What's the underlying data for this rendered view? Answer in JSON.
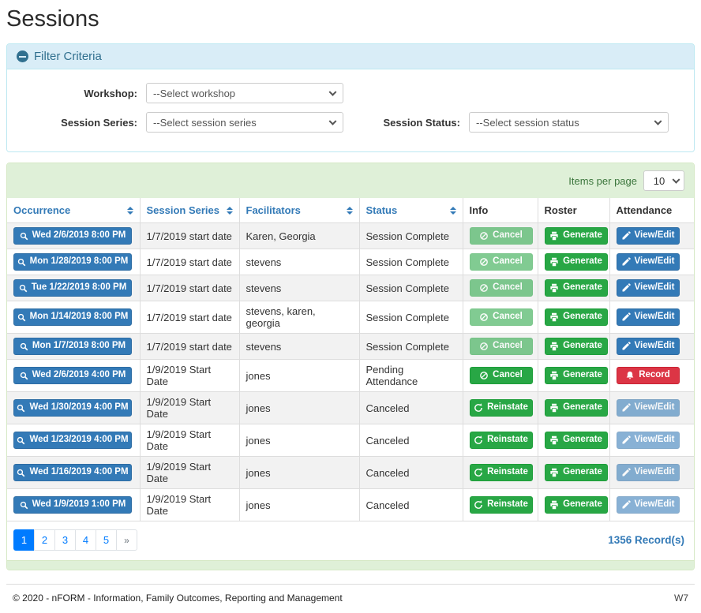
{
  "page": {
    "title": "Sessions"
  },
  "filter": {
    "title": "Filter Criteria",
    "collapse_icon": "minus-circle-icon",
    "workshop": {
      "label": "Workshop:",
      "value": "--Select workshop"
    },
    "session_series": {
      "label": "Session Series:",
      "value": "--Select session series"
    },
    "session_status": {
      "label": "Session Status:",
      "value": "--Select session status"
    }
  },
  "table": {
    "items_per_page_label": "Items per page",
    "items_per_page_value": "10",
    "columns": [
      {
        "label": "Occurrence",
        "sortable": true
      },
      {
        "label": "Session Series",
        "sortable": true
      },
      {
        "label": "Facilitators",
        "sortable": true
      },
      {
        "label": "Status",
        "sortable": true
      },
      {
        "label": "Info",
        "sortable": false
      },
      {
        "label": "Roster",
        "sortable": false
      },
      {
        "label": "Attendance",
        "sortable": false
      }
    ],
    "occurrence_icon": "search-icon",
    "rows": [
      {
        "occurrence": "Wed 2/6/2019 8:00 PM",
        "session_series": "1/7/2019 start date",
        "facilitators": "Karen, Georgia",
        "status": "Session Complete",
        "info": {
          "label": "Cancel",
          "icon": "cancel-icon",
          "color": "green",
          "disabled": true
        },
        "roster": {
          "label": "Generate",
          "icon": "print-icon",
          "color": "green",
          "disabled": false
        },
        "attendance": {
          "label": "View/Edit",
          "icon": "pencil-icon",
          "color": "blue",
          "disabled": false
        }
      },
      {
        "occurrence": "Mon 1/28/2019 8:00 PM",
        "session_series": "1/7/2019 start date",
        "facilitators": "stevens",
        "status": "Session Complete",
        "info": {
          "label": "Cancel",
          "icon": "cancel-icon",
          "color": "green",
          "disabled": true
        },
        "roster": {
          "label": "Generate",
          "icon": "print-icon",
          "color": "green",
          "disabled": false
        },
        "attendance": {
          "label": "View/Edit",
          "icon": "pencil-icon",
          "color": "blue",
          "disabled": false
        }
      },
      {
        "occurrence": "Tue 1/22/2019 8:00 PM",
        "session_series": "1/7/2019 start date",
        "facilitators": "stevens",
        "status": "Session Complete",
        "info": {
          "label": "Cancel",
          "icon": "cancel-icon",
          "color": "green",
          "disabled": true
        },
        "roster": {
          "label": "Generate",
          "icon": "print-icon",
          "color": "green",
          "disabled": false
        },
        "attendance": {
          "label": "View/Edit",
          "icon": "pencil-icon",
          "color": "blue",
          "disabled": false
        }
      },
      {
        "occurrence": "Mon 1/14/2019 8:00 PM",
        "session_series": "1/7/2019 start date",
        "facilitators": "stevens, karen, georgia",
        "status": "Session Complete",
        "info": {
          "label": "Cancel",
          "icon": "cancel-icon",
          "color": "green",
          "disabled": true
        },
        "roster": {
          "label": "Generate",
          "icon": "print-icon",
          "color": "green",
          "disabled": false
        },
        "attendance": {
          "label": "View/Edit",
          "icon": "pencil-icon",
          "color": "blue",
          "disabled": false
        }
      },
      {
        "occurrence": "Mon 1/7/2019 8:00 PM",
        "session_series": "1/7/2019 start date",
        "facilitators": "stevens",
        "status": "Session Complete",
        "info": {
          "label": "Cancel",
          "icon": "cancel-icon",
          "color": "green",
          "disabled": true
        },
        "roster": {
          "label": "Generate",
          "icon": "print-icon",
          "color": "green",
          "disabled": false
        },
        "attendance": {
          "label": "View/Edit",
          "icon": "pencil-icon",
          "color": "blue",
          "disabled": false
        }
      },
      {
        "occurrence": "Wed 2/6/2019 4:00 PM",
        "session_series": "1/9/2019 Start Date",
        "facilitators": "jones",
        "status": "Pending Attendance",
        "info": {
          "label": "Cancel",
          "icon": "cancel-icon",
          "color": "green",
          "disabled": false
        },
        "roster": {
          "label": "Generate",
          "icon": "print-icon",
          "color": "green",
          "disabled": false
        },
        "attendance": {
          "label": "Record",
          "icon": "bell-icon",
          "color": "red",
          "disabled": false
        }
      },
      {
        "occurrence": "Wed 1/30/2019 4:00 PM",
        "session_series": "1/9/2019 Start Date",
        "facilitators": "jones",
        "status": "Canceled",
        "info": {
          "label": "Reinstate",
          "icon": "reinstate-icon",
          "color": "green",
          "disabled": false
        },
        "roster": {
          "label": "Generate",
          "icon": "print-icon",
          "color": "green",
          "disabled": false
        },
        "attendance": {
          "label": "View/Edit",
          "icon": "pencil-icon",
          "color": "blue",
          "disabled": true
        }
      },
      {
        "occurrence": "Wed 1/23/2019 4:00 PM",
        "session_series": "1/9/2019 Start Date",
        "facilitators": "jones",
        "status": "Canceled",
        "info": {
          "label": "Reinstate",
          "icon": "reinstate-icon",
          "color": "green",
          "disabled": false
        },
        "roster": {
          "label": "Generate",
          "icon": "print-icon",
          "color": "green",
          "disabled": false
        },
        "attendance": {
          "label": "View/Edit",
          "icon": "pencil-icon",
          "color": "blue",
          "disabled": true
        }
      },
      {
        "occurrence": "Wed 1/16/2019 4:00 PM",
        "session_series": "1/9/2019 Start Date",
        "facilitators": "jones",
        "status": "Canceled",
        "info": {
          "label": "Reinstate",
          "icon": "reinstate-icon",
          "color": "green",
          "disabled": false
        },
        "roster": {
          "label": "Generate",
          "icon": "print-icon",
          "color": "green",
          "disabled": false
        },
        "attendance": {
          "label": "View/Edit",
          "icon": "pencil-icon",
          "color": "blue",
          "disabled": true
        }
      },
      {
        "occurrence": "Wed 1/9/2019 1:00 PM",
        "session_series": "1/9/2019 Start Date",
        "facilitators": "jones",
        "status": "Canceled",
        "info": {
          "label": "Reinstate",
          "icon": "reinstate-icon",
          "color": "green",
          "disabled": false
        },
        "roster": {
          "label": "Generate",
          "icon": "print-icon",
          "color": "green",
          "disabled": false
        },
        "attendance": {
          "label": "View/Edit",
          "icon": "pencil-icon",
          "color": "blue",
          "disabled": true
        }
      }
    ],
    "record_count": "1356 Record(s)"
  },
  "pagination": {
    "pages": [
      "1",
      "2",
      "3",
      "4",
      "5",
      "»"
    ],
    "active": "1"
  },
  "footer": {
    "copyright": "© 2020 - nFORM - Information, Family Outcomes, Reporting and Management",
    "version": "W7"
  },
  "colors": {
    "accent_blue": "#337ab7",
    "action_green": "#28a745",
    "danger_red": "#dc3545",
    "pagination_blue": "#007bff",
    "panel_info_bg": "#d9edf7",
    "panel_info_border": "#bce8f1",
    "card_success_bg": "#dff0d8",
    "card_success_border": "#d6e9c6",
    "items_per_page_green": "#3c763d"
  }
}
